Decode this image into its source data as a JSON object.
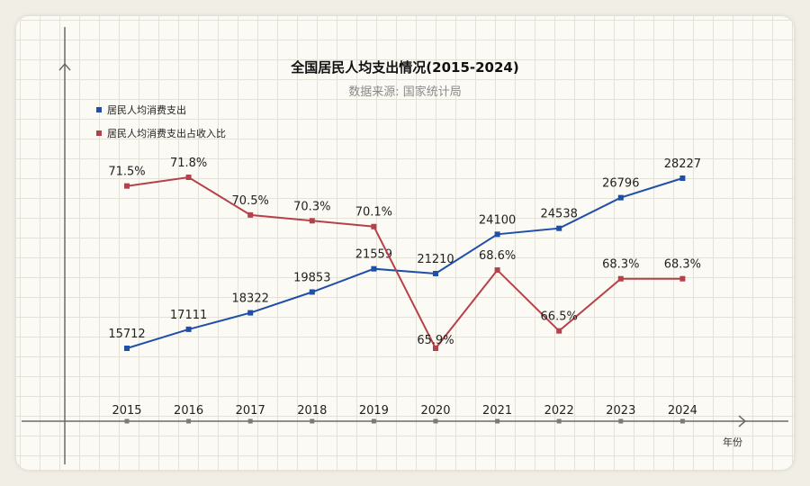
{
  "chart_data": {
    "type": "line",
    "title": "全国居民人均支出情况(2015-2024)",
    "subtitle": "数据来源: 国家统计局",
    "xlabel": "年份",
    "ylabel": "",
    "categories": [
      "2015",
      "2016",
      "2017",
      "2018",
      "2019",
      "2020",
      "2021",
      "2022",
      "2023",
      "2024"
    ],
    "series": [
      {
        "name": "居民人均消费支出",
        "color": "#1f4fa8",
        "values": [
          15712,
          17111,
          18322,
          19853,
          21559,
          21210,
          24100,
          24538,
          26796,
          28227
        ],
        "labels": [
          "15712",
          "17111",
          "18322",
          "19853",
          "21559",
          "21210",
          "24100",
          "24538",
          "26796",
          "28227"
        ]
      },
      {
        "name": "居民人均消费支出占收入比",
        "color": "#b5424a",
        "values": [
          71.5,
          71.8,
          70.5,
          70.3,
          70.1,
          65.9,
          68.6,
          66.5,
          68.3,
          68.3
        ],
        "labels": [
          "71.5%",
          "71.8%",
          "70.5%",
          "70.3%",
          "70.1%",
          "65.9%",
          "68.6%",
          "66.5%",
          "68.3%",
          "68.3%"
        ]
      }
    ],
    "legend_position": "top-left",
    "grid": true
  }
}
